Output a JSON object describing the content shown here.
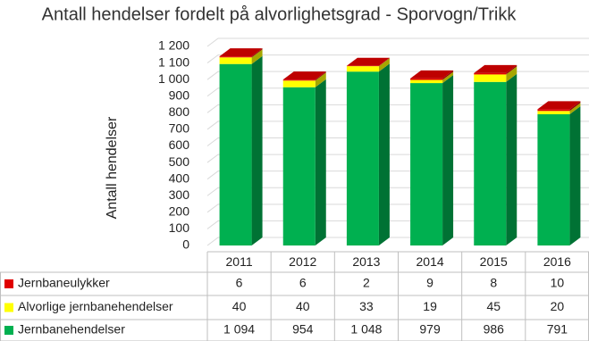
{
  "chart_data": {
    "type": "bar3d-stacked-table",
    "title": "Antall hendelser fordelt på alvorlighetsgrad - Sporvogn/Trikk",
    "y_label": "Antall hendelser",
    "categories": [
      "2011",
      "2012",
      "2013",
      "2014",
      "2015",
      "2016"
    ],
    "series": [
      {
        "name": "Jernbaneulykker",
        "color": "#e00000",
        "values": [
          6,
          6,
          2,
          9,
          8,
          10
        ]
      },
      {
        "name": "Alvorlige jernbanehendelser",
        "color": "#ffff00",
        "values": [
          40,
          40,
          33,
          19,
          45,
          20
        ]
      },
      {
        "name": "Jernbanehendelser",
        "color": "#00b050",
        "values": [
          1094,
          954,
          1048,
          979,
          986,
          791
        ],
        "value_labels": [
          "1 094",
          "954",
          "1 048",
          "979",
          "986",
          "791"
        ]
      }
    ],
    "ylim": [
      0,
      1200
    ],
    "yticks": [
      0,
      100,
      200,
      300,
      400,
      500,
      600,
      700,
      800,
      900,
      {
        "value": 1000,
        "label": "1 000"
      },
      {
        "value": 1100,
        "label": "1 100"
      },
      {
        "value": 1200,
        "label": "1 200"
      }
    ],
    "grid": true
  }
}
